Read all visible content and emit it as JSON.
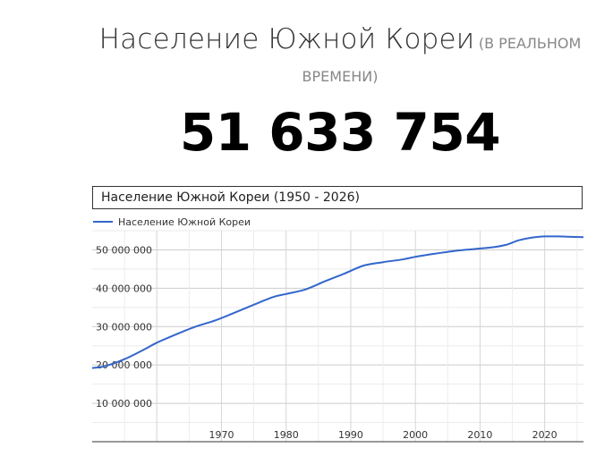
{
  "header": {
    "title": "Население Южной Кореи",
    "subtitle_part1": "(В РЕАЛЬНОМ",
    "subtitle_part2": "ВРЕМЕНИ)"
  },
  "counter": {
    "value": "51 633 754"
  },
  "chart_data": {
    "type": "line",
    "title": "Население Южной Кореи (1950 - 2026)",
    "legend_position": "top-left",
    "xlim": [
      1950,
      2026
    ],
    "ylim": [
      0,
      55000000
    ],
    "y_ticks": [
      10000000,
      20000000,
      30000000,
      40000000,
      50000000
    ],
    "y_tick_labels": [
      "10 000 000",
      "20 000 000",
      "30 000 000",
      "40 000 000",
      "50 000 000"
    ],
    "x_ticks": [
      1970,
      1980,
      1990,
      2000,
      2010,
      2020
    ],
    "x_tick_labels": [
      "1970",
      "1980",
      "1990",
      "2000",
      "2010",
      "2020"
    ],
    "grid": true,
    "series": [
      {
        "name": "Население Южной Кореи",
        "color": "#3366cc",
        "x": [
          1950,
          1952,
          1955,
          1958,
          1960,
          1963,
          1966,
          1969,
          1972,
          1975,
          1978,
          1980,
          1983,
          1986,
          1989,
          1992,
          1995,
          1998,
          2000,
          2003,
          2006,
          2009,
          2012,
          2014,
          2016,
          2018,
          2020,
          2022,
          2024,
          2026
        ],
        "values": [
          19200000,
          19700000,
          21500000,
          24000000,
          25800000,
          28000000,
          30000000,
          31600000,
          33600000,
          35700000,
          37700000,
          38500000,
          39700000,
          41800000,
          43800000,
          45900000,
          46800000,
          47500000,
          48200000,
          49000000,
          49700000,
          50200000,
          50700000,
          51300000,
          52500000,
          53200000,
          53500000,
          53500000,
          53400000,
          53300000
        ]
      }
    ]
  }
}
